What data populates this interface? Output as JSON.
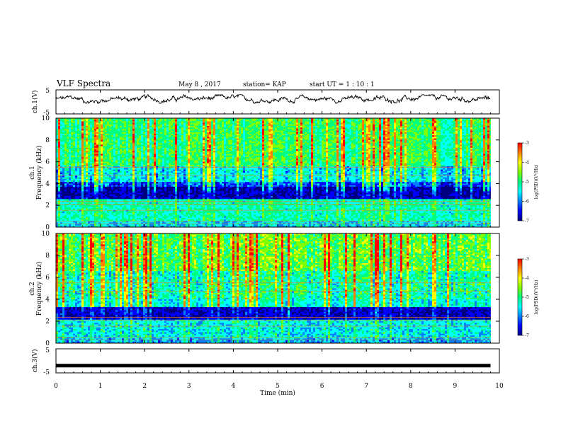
{
  "header": {
    "title": "VLF Spectra",
    "date": "May 8  , 2017",
    "station": "station= KAP",
    "start": "start  UT  =   1  : 10 : 1"
  },
  "panels": {
    "ch1_wave": {
      "ylabel": "ch.1(V)",
      "ytick_top": "5",
      "ytick_bottom": "-5"
    },
    "ch1_spec": {
      "ylabel_ch": "ch.1",
      "ylabel": "Frequency  (kHz)"
    },
    "ch2_spec": {
      "ylabel_ch": "ch.2",
      "ylabel": "Frequency  (kHz)"
    },
    "ch3_wave": {
      "ylabel": "ch.3(V)",
      "ytick_top": "5",
      "ytick_bottom": "-5"
    },
    "xlabel": "Time  (min)"
  },
  "colorbar": {
    "label": "log(PSD)(V²/Hz)",
    "ticks": [
      "-3",
      "-4",
      "-5",
      "-6",
      "-7"
    ],
    "colors": [
      "#000080",
      "#0000ff",
      "#0080ff",
      "#00ffff",
      "#00ff80",
      "#80ff00",
      "#ffff00",
      "#ff8000",
      "#ff0000",
      "#ffffff"
    ]
  },
  "chart_data": [
    {
      "type": "line",
      "title": "",
      "xlabel": "",
      "ylabel": "ch.1(V)",
      "xlim": [
        0,
        10
      ],
      "ylim": [
        -5,
        5
      ],
      "note_series": "noisy waveform roughly between 0 and 2.5 V across 0 to 9.8 min"
    },
    {
      "type": "heatmap",
      "ylabel": "ch.1 Frequency (kHz)",
      "xlim": [
        0,
        10
      ],
      "ylim": [
        0,
        10
      ],
      "yticks": [
        "0",
        "2",
        "4",
        "6",
        "8",
        "10"
      ],
      "colorbar_range": [
        -7,
        -3
      ],
      "time_extent_min": 9.8
    },
    {
      "type": "heatmap",
      "ylabel": "ch.2 Frequency (kHz)",
      "xlim": [
        0,
        10
      ],
      "ylim": [
        0,
        10
      ],
      "yticks": [
        "0",
        "2",
        "4",
        "6",
        "8",
        "10"
      ],
      "colorbar_range": [
        -7,
        -3
      ],
      "time_extent_min": 9.8
    },
    {
      "type": "line",
      "xlabel": "Time  (min)",
      "ylabel": "ch.3(V)",
      "xlim": [
        0,
        10
      ],
      "ylim": [
        -5,
        5
      ],
      "xticks": [
        "0",
        "1",
        "2",
        "3",
        "4",
        "5",
        "6",
        "7",
        "8",
        "9",
        "10"
      ],
      "series": [
        {
          "x": [
            0,
            9.8
          ],
          "y": [
            -2,
            -2
          ]
        }
      ]
    }
  ]
}
